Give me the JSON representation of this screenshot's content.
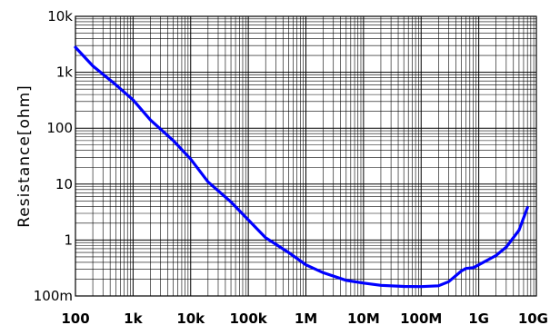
{
  "chart_data": {
    "type": "line",
    "title": "",
    "xlabel": "",
    "ylabel": "Resistance[ohm]",
    "x_scale": "log",
    "y_scale": "log",
    "xlim": [
      100,
      10000000000
    ],
    "ylim": [
      0.1,
      10000
    ],
    "grid": true,
    "x_ticks": [
      {
        "value": 100,
        "label": "100"
      },
      {
        "value": 1000,
        "label": "1k"
      },
      {
        "value": 10000,
        "label": "10k"
      },
      {
        "value": 100000,
        "label": "100k"
      },
      {
        "value": 1000000,
        "label": "1M"
      },
      {
        "value": 10000000,
        "label": "10M"
      },
      {
        "value": 100000000,
        "label": "100M"
      },
      {
        "value": 1000000000,
        "label": "1G"
      },
      {
        "value": 10000000000,
        "label": "10G"
      }
    ],
    "y_ticks": [
      {
        "value": 0.1,
        "label": "100m"
      },
      {
        "value": 1,
        "label": "1"
      },
      {
        "value": 10,
        "label": "10"
      },
      {
        "value": 100,
        "label": "100"
      },
      {
        "value": 1000,
        "label": "1k"
      },
      {
        "value": 10000,
        "label": "10k"
      }
    ],
    "series": [
      {
        "color": "#0000ff",
        "x": [
          100,
          200,
          500,
          1000,
          2000,
          5000,
          10000,
          20000,
          50000,
          100000,
          200000,
          500000,
          1000000,
          2000000,
          5000000,
          10000000,
          20000000,
          50000000,
          100000000,
          200000000,
          300000000,
          500000000,
          600000000,
          800000000,
          1000000000,
          2000000000,
          3000000000,
          5000000000,
          7000000000
        ],
        "y": [
          2800,
          1300,
          600,
          320,
          140,
          60,
          28,
          11,
          4.8,
          2.3,
          1.1,
          0.6,
          0.36,
          0.26,
          0.19,
          0.17,
          0.155,
          0.148,
          0.147,
          0.152,
          0.18,
          0.28,
          0.31,
          0.32,
          0.36,
          0.53,
          0.75,
          1.5,
          3.8
        ]
      }
    ]
  }
}
